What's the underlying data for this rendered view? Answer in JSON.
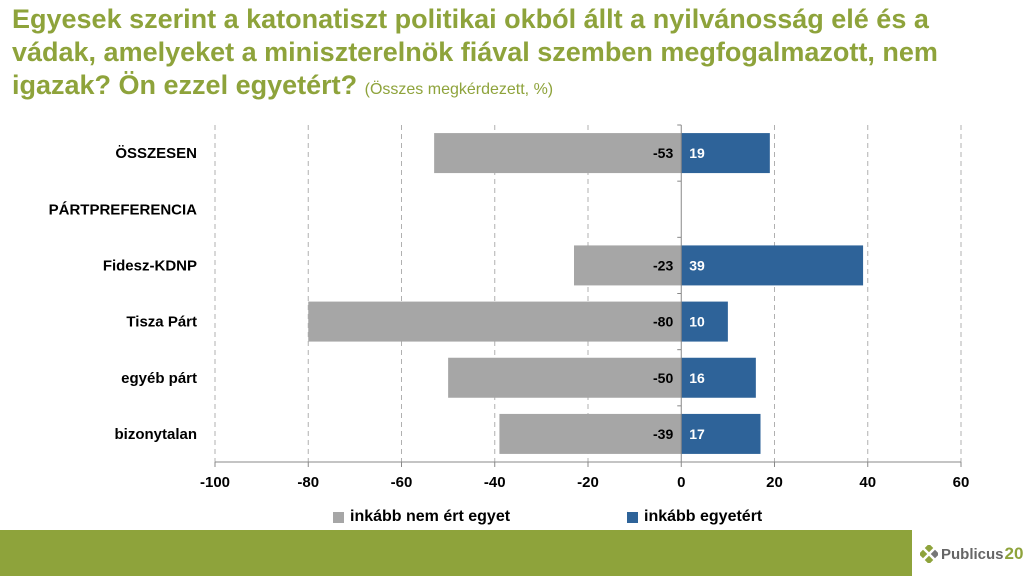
{
  "title": {
    "main": "Egyesek szerint a katonatiszt politikai okból állt a nyilvánosság elé és a vádak, amelyeket a miniszterelnök fiával szemben megfogalmazott, nem igazak? Ön ezzel egyetért?",
    "subtitle": "(Összes megkérdezett, %)"
  },
  "colors": {
    "title": "#8ea33b",
    "negative": "#a6a6a6",
    "positive": "#2e6399",
    "footer": "#8ea33b"
  },
  "chart_data": {
    "type": "bar",
    "orientation": "horizontal",
    "stacked": "diverging",
    "title": "Egyesek szerint a katonatiszt politikai okból állt a nyilvánosság elé és a vádak, amelyeket a miniszterelnök fiával szemben megfogalmazott, nem igazak? Ön ezzel egyetért?",
    "categories": [
      "ÖSSZESEN",
      "PÁRTPREFERENCIA",
      "Fidesz-KDNP",
      "Tisza Párt",
      "egyéb párt",
      "bizonytalan"
    ],
    "series": [
      {
        "name": "inkább nem ért egyet",
        "values": [
          -53,
          null,
          -23,
          -80,
          -50,
          -39
        ]
      },
      {
        "name": "inkább egyetért",
        "values": [
          19,
          null,
          39,
          10,
          16,
          17
        ]
      }
    ],
    "xlim": [
      -100,
      60
    ],
    "xticks": [
      -100,
      -80,
      -60,
      -40,
      -20,
      0,
      20,
      40,
      60
    ],
    "grid": "vertical dashed",
    "legend": "bottom"
  },
  "logo": {
    "text": "Publicus",
    "number": "20"
  }
}
